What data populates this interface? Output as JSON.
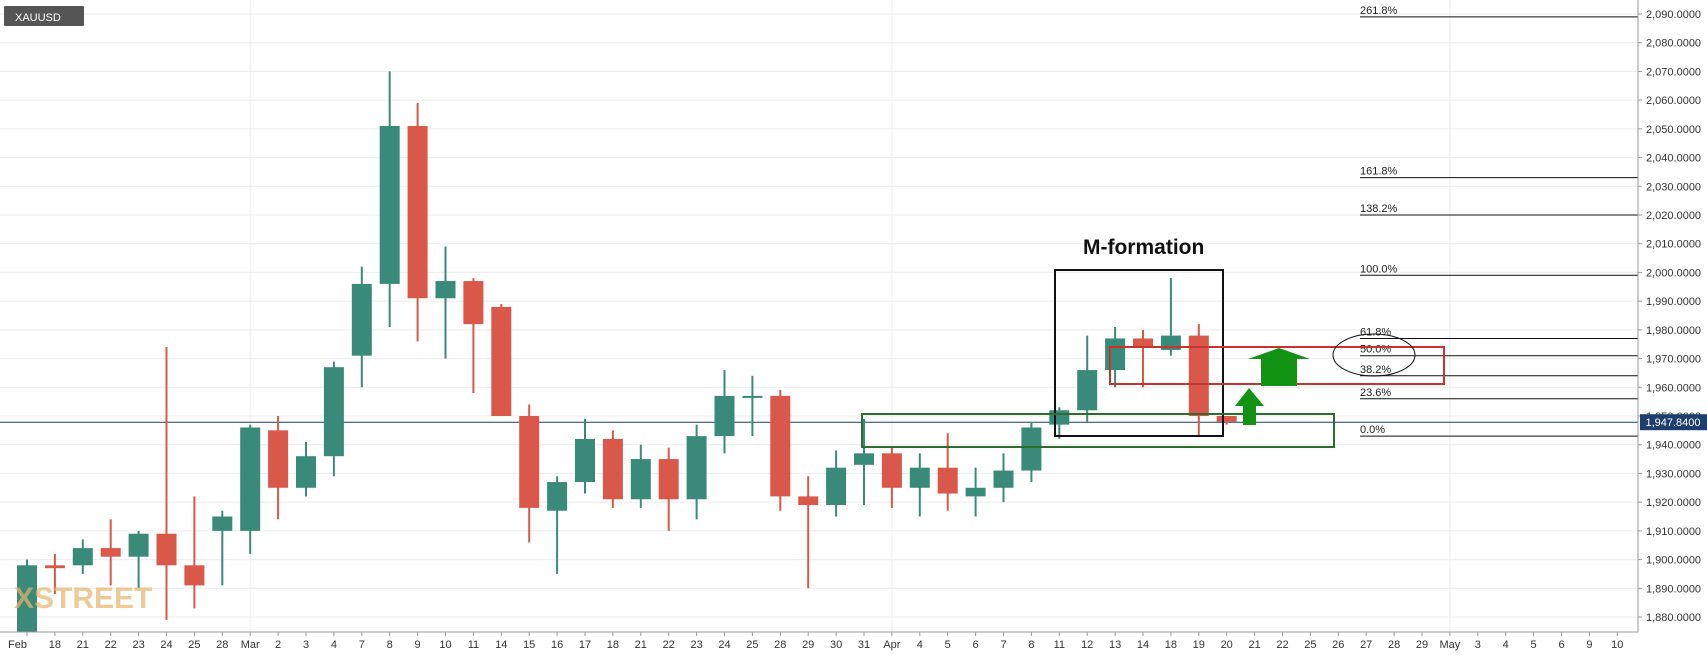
{
  "symbol": "XAUUSD",
  "watermark": "XSTREET",
  "annotation": "M-formation",
  "colors": {
    "up": "#3a8a7a",
    "down": "#d9584a",
    "price_line": "#1e3f6e",
    "grid": "#ececec",
    "green_box": "#2e6b2e",
    "red_box": "#c8332f",
    "arrow": "#139313"
  },
  "chart_data": {
    "type": "candlestick",
    "title": "XAUUSD",
    "ylim": [
      1873,
      2093
    ],
    "y_ticks": [
      "2,090.0000",
      "2,080.0000",
      "2,070.0000",
      "2,060.0000",
      "2,050.0000",
      "2,040.0000",
      "2,030.0000",
      "2,020.0000",
      "2,010.0000",
      "2,000.0000",
      "1,990.0000",
      "1,980.0000",
      "1,970.0000",
      "1,960.0000",
      "1,950.0000",
      "1,940.0000",
      "1,930.0000",
      "1,920.0000",
      "1,910.0000",
      "1,900.0000",
      "1,890.0000",
      "1,880.0000"
    ],
    "x_ticks": [
      "Feb",
      "18",
      "21",
      "22",
      "23",
      "24",
      "25",
      "28",
      "Mar",
      "2",
      "3",
      "4",
      "7",
      "8",
      "9",
      "10",
      "11",
      "14",
      "15",
      "16",
      "17",
      "18",
      "21",
      "22",
      "23",
      "24",
      "25",
      "28",
      "29",
      "30",
      "31",
      "Apr",
      "4",
      "5",
      "6",
      "7",
      "8",
      "11",
      "12",
      "13",
      "14",
      "18",
      "19",
      "20",
      "21",
      "22",
      "25",
      "26",
      "27",
      "28",
      "29",
      "May",
      "3",
      "4",
      "5",
      "6",
      "9",
      "10"
    ],
    "current_price": "1,947.8400",
    "candles": [
      {
        "date": "17 Feb",
        "o": 1873,
        "h": 1900,
        "l": 1873,
        "c": 1898
      },
      {
        "date": "18 Feb",
        "o": 1898,
        "h": 1902,
        "l": 1888,
        "c": 1897
      },
      {
        "date": "21 Feb",
        "o": 1898,
        "h": 1907,
        "l": 1895,
        "c": 1904
      },
      {
        "date": "22 Feb",
        "o": 1904,
        "h": 1914,
        "l": 1891,
        "c": 1901
      },
      {
        "date": "23 Feb",
        "o": 1901,
        "h": 1910,
        "l": 1890,
        "c": 1909
      },
      {
        "date": "24 Feb",
        "o": 1909,
        "h": 1974,
        "l": 1879,
        "c": 1898
      },
      {
        "date": "25 Feb",
        "o": 1898,
        "h": 1922,
        "l": 1883,
        "c": 1891
      },
      {
        "date": "28 Feb",
        "o": 1910,
        "h": 1917,
        "l": 1891,
        "c": 1915
      },
      {
        "date": "1 Mar",
        "o": 1910,
        "h": 1947,
        "l": 1902,
        "c": 1946
      },
      {
        "date": "2 Mar",
        "o": 1945,
        "h": 1950,
        "l": 1914,
        "c": 1925
      },
      {
        "date": "3 Mar",
        "o": 1925,
        "h": 1941,
        "l": 1922,
        "c": 1936
      },
      {
        "date": "4 Mar",
        "o": 1936,
        "h": 1969,
        "l": 1929,
        "c": 1967
      },
      {
        "date": "7 Mar",
        "o": 1971,
        "h": 2002,
        "l": 1960,
        "c": 1996
      },
      {
        "date": "8 Mar",
        "o": 1996,
        "h": 2070,
        "l": 1981,
        "c": 2051
      },
      {
        "date": "9 Mar",
        "o": 2051,
        "h": 2059,
        "l": 1976,
        "c": 1991
      },
      {
        "date": "10 Mar",
        "o": 1991,
        "h": 2009,
        "l": 1970,
        "c": 1997
      },
      {
        "date": "11 Mar",
        "o": 1997,
        "h": 1998,
        "l": 1958,
        "c": 1982
      },
      {
        "date": "14 Mar",
        "o": 1988,
        "h": 1989,
        "l": 1950,
        "c": 1950
      },
      {
        "date": "15 Mar",
        "o": 1950,
        "h": 1954,
        "l": 1906,
        "c": 1918
      },
      {
        "date": "16 Mar",
        "o": 1917,
        "h": 1929,
        "l": 1895,
        "c": 1927
      },
      {
        "date": "17 Mar",
        "o": 1927,
        "h": 1949,
        "l": 1923,
        "c": 1942
      },
      {
        "date": "18 Mar",
        "o": 1942,
        "h": 1945,
        "l": 1918,
        "c": 1921
      },
      {
        "date": "21 Mar",
        "o": 1921,
        "h": 1940,
        "l": 1918,
        "c": 1935
      },
      {
        "date": "22 Mar",
        "o": 1935,
        "h": 1939,
        "l": 1910,
        "c": 1921
      },
      {
        "date": "23 Mar",
        "o": 1921,
        "h": 1947,
        "l": 1914,
        "c": 1943
      },
      {
        "date": "24 Mar",
        "o": 1943,
        "h": 1966,
        "l": 1937,
        "c": 1957
      },
      {
        "date": "25 Mar",
        "o": 1957,
        "h": 1964,
        "l": 1943,
        "c": 1957
      },
      {
        "date": "28 Mar",
        "o": 1957,
        "h": 1959,
        "l": 1917,
        "c": 1922
      },
      {
        "date": "29 Mar",
        "o": 1922,
        "h": 1929,
        "l": 1890,
        "c": 1919
      },
      {
        "date": "30 Mar",
        "o": 1919,
        "h": 1938,
        "l": 1915,
        "c": 1932
      },
      {
        "date": "31 Mar",
        "o": 1933,
        "h": 1949,
        "l": 1919,
        "c": 1937
      },
      {
        "date": "1 Apr",
        "o": 1937,
        "h": 1939,
        "l": 1918,
        "c": 1925
      },
      {
        "date": "4 Apr",
        "o": 1925,
        "h": 1937,
        "l": 1915,
        "c": 1932
      },
      {
        "date": "5 Apr",
        "o": 1932,
        "h": 1944,
        "l": 1917,
        "c": 1923
      },
      {
        "date": "6 Apr",
        "o": 1922,
        "h": 1932,
        "l": 1915,
        "c": 1925
      },
      {
        "date": "7 Apr",
        "o": 1925,
        "h": 1937,
        "l": 1920,
        "c": 1931
      },
      {
        "date": "8 Apr",
        "o": 1931,
        "h": 1948,
        "l": 1927,
        "c": 1946
      },
      {
        "date": "11 Apr",
        "o": 1947,
        "h": 1953,
        "l": 1942,
        "c": 1952
      },
      {
        "date": "12 Apr",
        "o": 1952,
        "h": 1978,
        "l": 1948,
        "c": 1966
      },
      {
        "date": "13 Apr",
        "o": 1966,
        "h": 1981,
        "l": 1960,
        "c": 1977
      },
      {
        "date": "14 Apr",
        "o": 1977,
        "h": 1980,
        "l": 1960,
        "c": 1974
      },
      {
        "date": "18 Apr",
        "o": 1973,
        "h": 1998,
        "l": 1971,
        "c": 1978
      },
      {
        "date": "19 Apr",
        "o": 1978,
        "h": 1982,
        "l": 1943,
        "c": 1950
      },
      {
        "date": "20 Apr",
        "o": 1950,
        "h": 1950,
        "l": 1947,
        "c": 1948
      }
    ],
    "fibonacci": [
      {
        "label": "261.8%",
        "value": 2089
      },
      {
        "label": "161.8%",
        "value": 2033
      },
      {
        "label": "138.2%",
        "value": 2020
      },
      {
        "label": "100.0%",
        "value": 1999
      },
      {
        "label": "61.8%",
        "value": 1977
      },
      {
        "label": "50.0%",
        "value": 1971
      },
      {
        "label": "38.2%",
        "value": 1964
      },
      {
        "label": "23.6%",
        "value": 1956
      },
      {
        "label": "0.0%",
        "value": 1943
      }
    ]
  }
}
